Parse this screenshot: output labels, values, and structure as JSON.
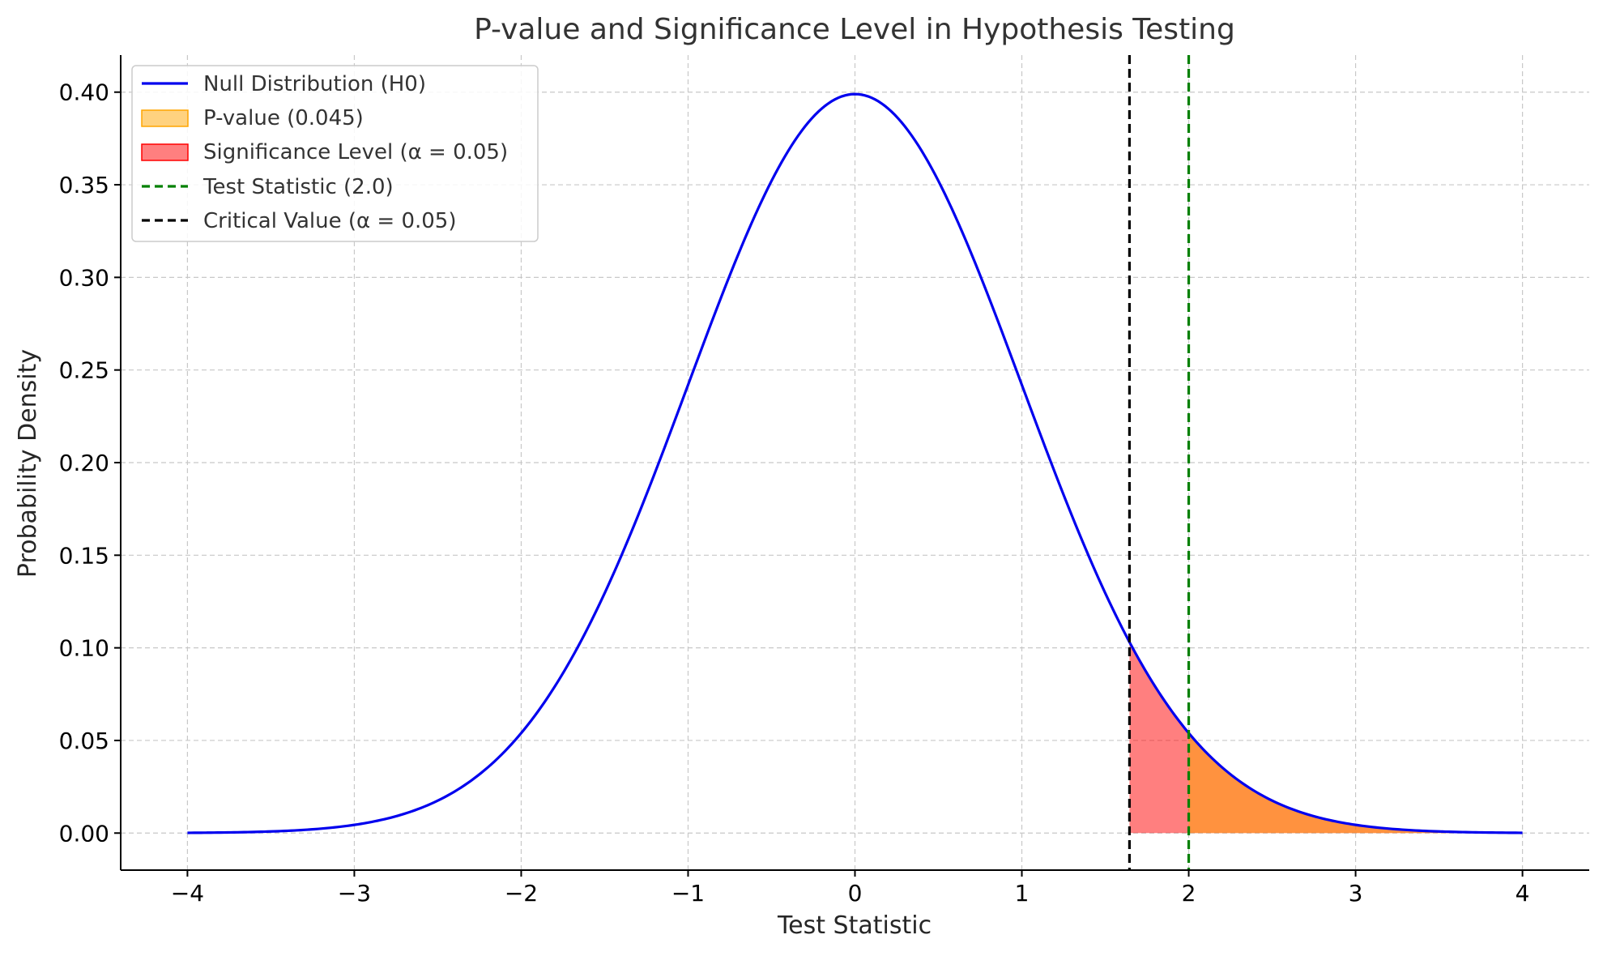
{
  "chart_data": {
    "type": "line",
    "title": "P-value and Significance Level in Hypothesis Testing",
    "xlabel": "Test Statistic",
    "ylabel": "Probability Density",
    "xlim": [
      -4.4,
      4.4
    ],
    "ylim": [
      -0.02,
      0.42
    ],
    "x_ticks": [
      -4,
      -3,
      -2,
      -1,
      0,
      1,
      2,
      3,
      4
    ],
    "x_tick_labels": [
      "−4",
      "−3",
      "−2",
      "−1",
      "0",
      "1",
      "2",
      "3",
      "4"
    ],
    "y_ticks": [
      0.0,
      0.05,
      0.1,
      0.15,
      0.2,
      0.25,
      0.3,
      0.35,
      0.4
    ],
    "y_tick_labels": [
      "0.00",
      "0.05",
      "0.10",
      "0.15",
      "0.20",
      "0.25",
      "0.30",
      "0.35",
      "0.40"
    ],
    "grid": true,
    "legend_position": "top-left",
    "curve": {
      "name": "Null Distribution (H0)",
      "color": "#0000ee",
      "x": [
        -4.0,
        -3.5,
        -3.0,
        -2.5,
        -2.0,
        -1.5,
        -1.0,
        -0.5,
        0.0,
        0.5,
        1.0,
        1.5,
        1.645,
        2.0,
        2.5,
        3.0,
        3.5,
        4.0
      ],
      "y": [
        0.0001,
        0.0009,
        0.0044,
        0.0175,
        0.054,
        0.1295,
        0.242,
        0.3521,
        0.3989,
        0.3521,
        0.242,
        0.1295,
        0.1031,
        0.054,
        0.0175,
        0.0044,
        0.0009,
        0.0001
      ]
    },
    "pvalue_region": {
      "name": "P-value (0.045)",
      "color": "#ffa500",
      "x_from": 2.0,
      "x_to": 4.0
    },
    "significance_region": {
      "name": "Significance Level (α = 0.05)",
      "color": "#ff0000",
      "x_from": 1.645,
      "x_to": 4.0
    },
    "test_statistic_line": {
      "name": "Test Statistic (2.0)",
      "color": "#008000",
      "x": 2.0
    },
    "critical_value_line": {
      "name": "Critical Value (α = 0.05)",
      "color": "#000000",
      "x": 1.645
    }
  }
}
